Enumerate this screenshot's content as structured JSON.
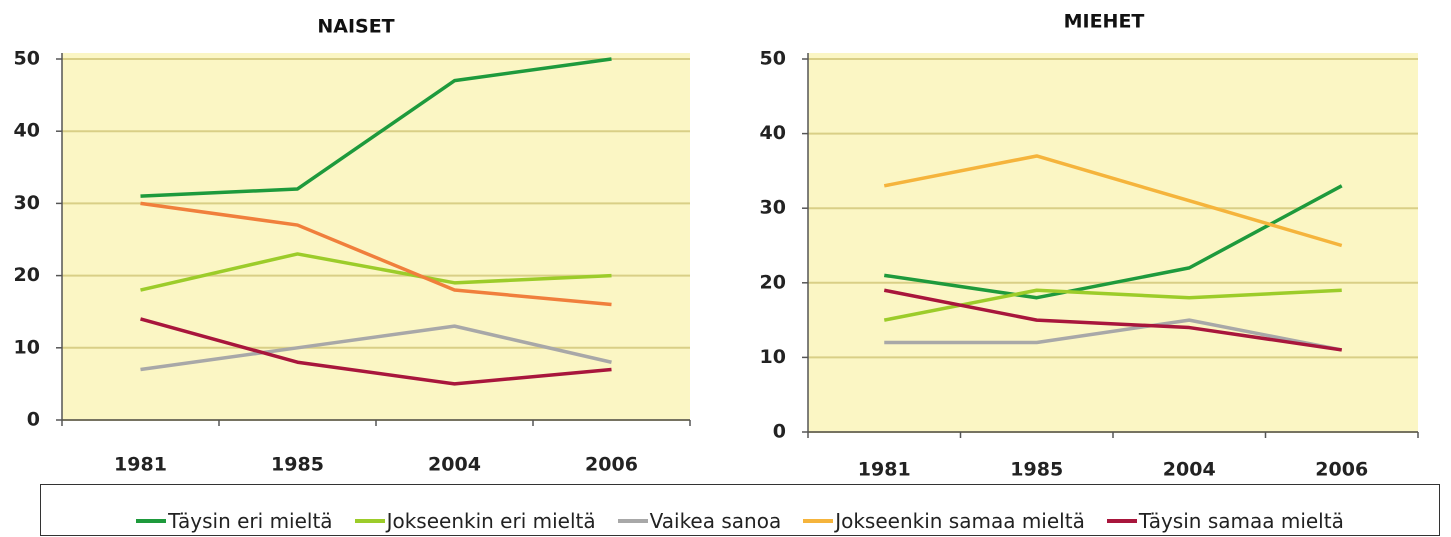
{
  "chart_data": [
    {
      "type": "line",
      "title": "NAISET",
      "categories": [
        "1981",
        "1985",
        "2004",
        "2006"
      ],
      "ylim": [
        0,
        50
      ],
      "yticks": [
        0,
        10,
        20,
        30,
        40,
        50
      ],
      "grid": true,
      "series": [
        {
          "color": "#1e9a3c",
          "values": [
            31,
            32,
            47,
            50
          ]
        },
        {
          "color": "#9ccc2a",
          "values": [
            18,
            23,
            19,
            20
          ]
        },
        {
          "color": "#a8a8a8",
          "values": [
            7,
            10,
            13,
            8
          ]
        },
        {
          "color": "#f07f3c",
          "values": [
            30,
            27,
            18,
            16
          ]
        },
        {
          "color": "#a8163c",
          "values": [
            14,
            8,
            5,
            7
          ]
        }
      ]
    },
    {
      "type": "line",
      "title": "MIEHET",
      "categories": [
        "1981",
        "1985",
        "2004",
        "2006"
      ],
      "ylim": [
        0,
        50
      ],
      "yticks": [
        0,
        10,
        20,
        30,
        40,
        50
      ],
      "grid": true,
      "series": [
        {
          "color": "#1e9a3c",
          "values": [
            21,
            18,
            22,
            33
          ]
        },
        {
          "color": "#9ccc2a",
          "values": [
            15,
            19,
            18,
            19
          ]
        },
        {
          "color": "#a8a8a8",
          "values": [
            12,
            12,
            15,
            11
          ]
        },
        {
          "color": "#f5b43c",
          "values": [
            33,
            37,
            31,
            25
          ]
        },
        {
          "color": "#a8163c",
          "values": [
            19,
            15,
            14,
            11
          ]
        }
      ]
    }
  ],
  "legend": {
    "items": [
      {
        "name": "Täysin eri mieltä",
        "color": "#1e9a3c"
      },
      {
        "name": "Jokseenkin eri mieltä",
        "color": "#9ccc2a"
      },
      {
        "name": "Vaikea sanoa",
        "color": "#a8a8a8"
      },
      {
        "name": "Jokseenkin samaa mieltä",
        "color": "#f5b43c"
      },
      {
        "name": "Täysin samaa mieltä",
        "color": "#a8163c"
      }
    ]
  }
}
